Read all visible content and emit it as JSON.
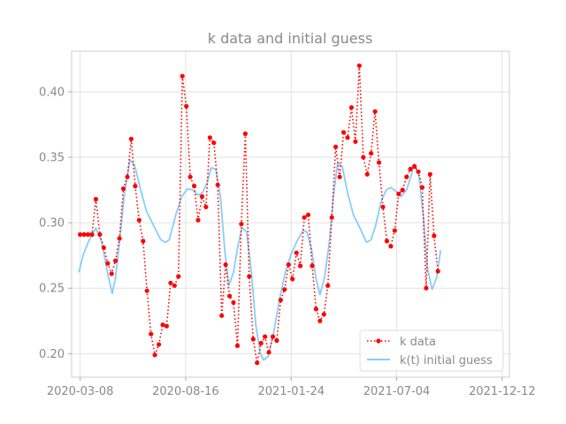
{
  "chart_data": {
    "type": "line",
    "title": "k data and initial guess",
    "xlabel": "",
    "ylabel": "",
    "grid": true,
    "legend_position": "lower-right",
    "x_ticks": [
      "2020-03-08",
      "2020-08-16",
      "2021-01-24",
      "2021-07-04",
      "2021-12-12"
    ],
    "y_ticks": [
      0.2,
      0.25,
      0.3,
      0.35,
      0.4
    ],
    "xlim": [
      "2020-02-24",
      "2021-12-23"
    ],
    "ylim": [
      0.182,
      0.431
    ],
    "colors": {
      "k_data": "#ff0000",
      "initial_guess": "#87cefa"
    },
    "series": [
      {
        "name": "k data",
        "style": "dotted-markers",
        "points": [
          [
            "2020-03-08",
            0.291
          ],
          [
            "2020-03-14",
            0.291
          ],
          [
            "2020-03-20",
            0.291
          ],
          [
            "2020-03-26",
            0.291
          ],
          [
            "2020-04-01",
            0.318
          ],
          [
            "2020-04-07",
            0.291
          ],
          [
            "2020-04-13",
            0.281
          ],
          [
            "2020-04-19",
            0.269
          ],
          [
            "2020-04-25",
            0.261
          ],
          [
            "2020-05-01",
            0.271
          ],
          [
            "2020-05-07",
            0.288
          ],
          [
            "2020-05-13",
            0.326
          ],
          [
            "2020-05-19",
            0.335
          ],
          [
            "2020-05-25",
            0.364
          ],
          [
            "2020-05-31",
            0.328
          ],
          [
            "2020-06-06",
            0.302
          ],
          [
            "2020-06-12",
            0.286
          ],
          [
            "2020-06-18",
            0.248
          ],
          [
            "2020-06-24",
            0.215
          ],
          [
            "2020-06-30",
            0.199
          ],
          [
            "2020-07-06",
            0.207
          ],
          [
            "2020-07-12",
            0.222
          ],
          [
            "2020-07-18",
            0.221
          ],
          [
            "2020-07-24",
            0.254
          ],
          [
            "2020-07-30",
            0.252
          ],
          [
            "2020-08-05",
            0.259
          ],
          [
            "2020-08-11",
            0.412
          ],
          [
            "2020-08-17",
            0.389
          ],
          [
            "2020-08-23",
            0.335
          ],
          [
            "2020-08-29",
            0.328
          ],
          [
            "2020-09-04",
            0.302
          ],
          [
            "2020-09-10",
            0.32
          ],
          [
            "2020-09-16",
            0.312
          ],
          [
            "2020-09-22",
            0.365
          ],
          [
            "2020-09-28",
            0.361
          ],
          [
            "2020-10-04",
            0.329
          ],
          [
            "2020-10-10",
            0.229
          ],
          [
            "2020-10-16",
            0.268
          ],
          [
            "2020-10-22",
            0.244
          ],
          [
            "2020-10-28",
            0.239
          ],
          [
            "2020-11-03",
            0.206
          ],
          [
            "2020-11-09",
            0.299
          ],
          [
            "2020-11-15",
            0.368
          ],
          [
            "2020-11-21",
            0.259
          ],
          [
            "2020-11-27",
            0.211
          ],
          [
            "2020-12-03",
            0.193
          ],
          [
            "2020-12-09",
            0.208
          ],
          [
            "2020-12-15",
            0.213
          ],
          [
            "2020-12-21",
            0.201
          ],
          [
            "2020-12-27",
            0.213
          ],
          [
            "2021-01-02",
            0.21
          ],
          [
            "2021-01-08",
            0.241
          ],
          [
            "2021-01-14",
            0.249
          ],
          [
            "2021-01-20",
            0.268
          ],
          [
            "2021-01-26",
            0.257
          ],
          [
            "2021-02-01",
            0.277
          ],
          [
            "2021-02-07",
            0.267
          ],
          [
            "2021-02-13",
            0.304
          ],
          [
            "2021-02-19",
            0.306
          ],
          [
            "2021-02-25",
            0.267
          ],
          [
            "2021-03-03",
            0.234
          ],
          [
            "2021-03-09",
            0.225
          ],
          [
            "2021-03-15",
            0.23
          ],
          [
            "2021-03-21",
            0.252
          ],
          [
            "2021-03-27",
            0.304
          ],
          [
            "2021-04-02",
            0.358
          ],
          [
            "2021-04-08",
            0.335
          ],
          [
            "2021-04-14",
            0.369
          ],
          [
            "2021-04-20",
            0.365
          ],
          [
            "2021-04-26",
            0.388
          ],
          [
            "2021-05-02",
            0.362
          ],
          [
            "2021-05-08",
            0.42
          ],
          [
            "2021-05-14",
            0.35
          ],
          [
            "2021-05-20",
            0.337
          ],
          [
            "2021-05-26",
            0.353
          ],
          [
            "2021-06-01",
            0.385
          ],
          [
            "2021-06-07",
            0.346
          ],
          [
            "2021-06-13",
            0.312
          ],
          [
            "2021-06-19",
            0.286
          ],
          [
            "2021-06-25",
            0.282
          ],
          [
            "2021-07-01",
            0.294
          ],
          [
            "2021-07-07",
            0.322
          ],
          [
            "2021-07-13",
            0.325
          ],
          [
            "2021-07-19",
            0.335
          ],
          [
            "2021-07-25",
            0.341
          ],
          [
            "2021-07-31",
            0.343
          ],
          [
            "2021-08-06",
            0.339
          ],
          [
            "2021-08-12",
            0.327
          ],
          [
            "2021-08-18",
            0.25
          ],
          [
            "2021-08-24",
            0.337
          ],
          [
            "2021-08-30",
            0.29
          ],
          [
            "2021-09-05",
            0.263
          ]
        ]
      },
      {
        "name": "k(t) initial guess",
        "style": "solid",
        "points": [
          [
            "2020-03-06",
            0.262
          ],
          [
            "2020-03-13",
            0.276
          ],
          [
            "2020-03-22",
            0.287
          ],
          [
            "2020-04-01",
            0.296
          ],
          [
            "2020-04-10",
            0.285
          ],
          [
            "2020-04-19",
            0.261
          ],
          [
            "2020-04-26",
            0.246
          ],
          [
            "2020-05-01",
            0.258
          ],
          [
            "2020-05-07",
            0.285
          ],
          [
            "2020-05-14",
            0.32
          ],
          [
            "2020-05-23",
            0.348
          ],
          [
            "2020-05-30",
            0.344
          ],
          [
            "2020-06-08",
            0.326
          ],
          [
            "2020-06-17",
            0.309
          ],
          [
            "2020-06-28",
            0.298
          ],
          [
            "2020-07-09",
            0.287
          ],
          [
            "2020-07-16",
            0.285
          ],
          [
            "2020-07-22",
            0.287
          ],
          [
            "2020-08-01",
            0.306
          ],
          [
            "2020-08-10",
            0.32
          ],
          [
            "2020-08-19",
            0.326
          ],
          [
            "2020-08-27",
            0.325
          ],
          [
            "2020-09-04",
            0.321
          ],
          [
            "2020-09-11",
            0.323
          ],
          [
            "2020-09-18",
            0.331
          ],
          [
            "2020-09-24",
            0.342
          ],
          [
            "2020-10-01",
            0.341
          ],
          [
            "2020-10-08",
            0.32
          ],
          [
            "2020-10-15",
            0.277
          ],
          [
            "2020-10-21",
            0.252
          ],
          [
            "2020-10-28",
            0.262
          ],
          [
            "2020-11-04",
            0.283
          ],
          [
            "2020-11-10",
            0.296
          ],
          [
            "2020-11-17",
            0.293
          ],
          [
            "2020-11-24",
            0.264
          ],
          [
            "2020-12-01",
            0.222
          ],
          [
            "2020-12-08",
            0.2
          ],
          [
            "2020-12-13",
            0.195
          ],
          [
            "2020-12-20",
            0.198
          ],
          [
            "2020-12-28",
            0.215
          ],
          [
            "2021-01-06",
            0.241
          ],
          [
            "2021-01-15",
            0.262
          ],
          [
            "2021-01-24",
            0.276
          ],
          [
            "2021-02-02",
            0.286
          ],
          [
            "2021-02-11",
            0.294
          ],
          [
            "2021-02-17",
            0.293
          ],
          [
            "2021-02-24",
            0.28
          ],
          [
            "2021-03-03",
            0.257
          ],
          [
            "2021-03-09",
            0.245
          ],
          [
            "2021-03-16",
            0.258
          ],
          [
            "2021-03-23",
            0.284
          ],
          [
            "2021-03-30",
            0.322
          ],
          [
            "2021-04-05",
            0.346
          ],
          [
            "2021-04-12",
            0.343
          ],
          [
            "2021-04-20",
            0.323
          ],
          [
            "2021-04-29",
            0.306
          ],
          [
            "2021-05-09",
            0.296
          ],
          [
            "2021-05-19",
            0.285
          ],
          [
            "2021-05-26",
            0.287
          ],
          [
            "2021-06-02",
            0.298
          ],
          [
            "2021-06-10",
            0.316
          ],
          [
            "2021-06-18",
            0.325
          ],
          [
            "2021-06-25",
            0.327
          ],
          [
            "2021-07-03",
            0.324
          ],
          [
            "2021-07-11",
            0.32
          ],
          [
            "2021-07-19",
            0.325
          ],
          [
            "2021-07-26",
            0.336
          ],
          [
            "2021-07-31",
            0.345
          ],
          [
            "2021-08-07",
            0.336
          ],
          [
            "2021-08-14",
            0.303
          ],
          [
            "2021-08-20",
            0.265
          ],
          [
            "2021-08-27",
            0.249
          ],
          [
            "2021-09-03",
            0.258
          ],
          [
            "2021-09-09",
            0.279
          ]
        ]
      }
    ]
  }
}
